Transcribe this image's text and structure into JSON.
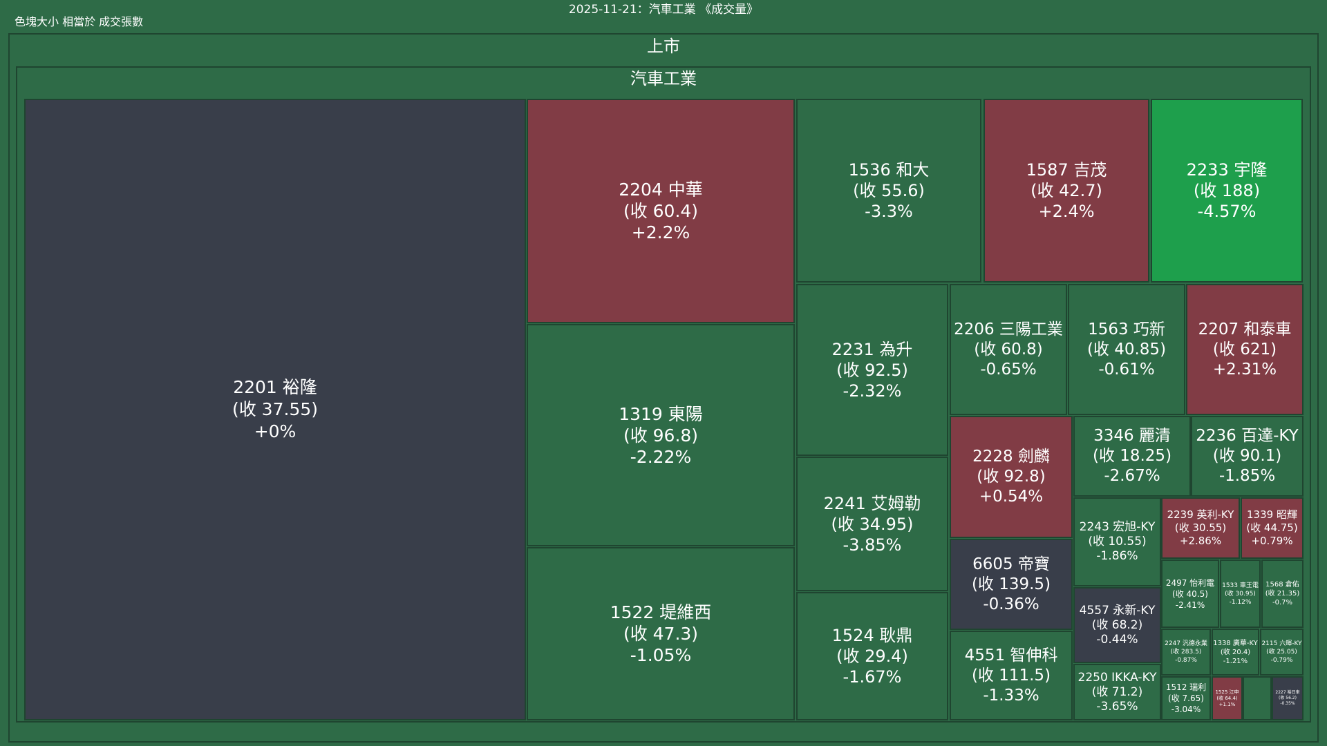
{
  "title": "2025-11-21：汽車工業 《成交量》",
  "size_note": "色塊大小 相當於 成交張數",
  "colors": {
    "up": "#813c45",
    "down": "#2e6b47",
    "flat": "#393e4a",
    "strong_down": "#1e9f4c",
    "border": "#1f4530"
  },
  "chart_data": {
    "type": "treemap",
    "title": "2025-11-21：汽車工業 《成交量》",
    "size_measure": "色塊大小 相當於 成交張數",
    "hierarchy": [
      "上市",
      "汽車工業"
    ],
    "market_label": "上市",
    "sector_label": "汽車工業",
    "tiles": [
      {
        "name": "2201 裕隆",
        "close": "(收 37.55)",
        "change": "+0%",
        "change_value": 0,
        "color": "#393e4a"
      },
      {
        "name": "2204 中華",
        "close": "(收 60.4)",
        "change": "+2.2%",
        "change_value": 2.2,
        "color": "#813c45"
      },
      {
        "name": "1319 東陽",
        "close": "(收 96.8)",
        "change": "-2.22%",
        "change_value": -2.22,
        "color": "#2e6b47"
      },
      {
        "name": "1522 堤維西",
        "close": "(收 47.3)",
        "change": "-1.05%",
        "change_value": -1.05,
        "color": "#2e6b47"
      },
      {
        "name": "1536 和大",
        "close": "(收 55.6)",
        "change": "-3.3%",
        "change_value": -3.3,
        "color": "#2e6b47"
      },
      {
        "name": "1587 吉茂",
        "close": "(收 42.7)",
        "change": "+2.4%",
        "change_value": 2.4,
        "color": "#813c45"
      },
      {
        "name": "2233 宇隆",
        "close": "(收 188)",
        "change": "-4.57%",
        "change_value": -4.57,
        "color": "#1e9f4c"
      },
      {
        "name": "2231 為升",
        "close": "(收 92.5)",
        "change": "-2.32%",
        "change_value": -2.32,
        "color": "#2e6b47"
      },
      {
        "name": "2241 艾姆勒",
        "close": "(收 34.95)",
        "change": "-3.85%",
        "change_value": -3.85,
        "color": "#2e6b47"
      },
      {
        "name": "1524 耿鼎",
        "close": "(收 29.4)",
        "change": "-1.67%",
        "change_value": -1.67,
        "color": "#2e6b47"
      },
      {
        "name": "2206 三陽工業",
        "close": "(收 60.8)",
        "change": "-0.65%",
        "change_value": -0.65,
        "color": "#2e6b47"
      },
      {
        "name": "1563 巧新",
        "close": "(收 40.85)",
        "change": "-0.61%",
        "change_value": -0.61,
        "color": "#2e6b47"
      },
      {
        "name": "2207 和泰車",
        "close": "(收 621)",
        "change": "+2.31%",
        "change_value": 2.31,
        "color": "#813c45"
      },
      {
        "name": "2228 劍麟",
        "close": "(收 92.8)",
        "change": "+0.54%",
        "change_value": 0.54,
        "color": "#813c45"
      },
      {
        "name": "3346 麗清",
        "close": "(收 18.25)",
        "change": "-2.67%",
        "change_value": -2.67,
        "color": "#2e6b47"
      },
      {
        "name": "2236 百達-KY",
        "close": "(收 90.1)",
        "change": "-1.85%",
        "change_value": -1.85,
        "color": "#2e6b47"
      },
      {
        "name": "6605 帝寶",
        "close": "(收 139.5)",
        "change": "-0.36%",
        "change_value": -0.36,
        "color": "#393e4a"
      },
      {
        "name": "4551 智伸科",
        "close": "(收 111.5)",
        "change": "-1.33%",
        "change_value": -1.33,
        "color": "#2e6b47"
      },
      {
        "name": "2243 宏旭-KY",
        "close": "(收 10.55)",
        "change": "-1.86%",
        "change_value": -1.86,
        "color": "#2e6b47"
      },
      {
        "name": "4557 永新-KY",
        "close": "(收 68.2)",
        "change": "-0.44%",
        "change_value": -0.44,
        "color": "#393e4a"
      },
      {
        "name": "2250 IKKA-KY",
        "close": "(收 71.2)",
        "change": "-3.65%",
        "change_value": -3.65,
        "color": "#2e6b47"
      },
      {
        "name": "2239 英利-KY",
        "close": "(收 30.55)",
        "change": "+2.86%",
        "change_value": 2.86,
        "color": "#813c45"
      },
      {
        "name": "1339 昭輝",
        "close": "(收 44.75)",
        "change": "+0.79%",
        "change_value": 0.79,
        "color": "#813c45"
      },
      {
        "name": "2497 怡利電",
        "close": "(收 40.5)",
        "change": "-2.41%",
        "change_value": -2.41,
        "color": "#2e6b47"
      },
      {
        "name": "1533 車王電",
        "close": "(收 30.95)",
        "change": "-1.12%",
        "change_value": -1.12,
        "color": "#2e6b47"
      },
      {
        "name": "1568 倉佑",
        "close": "(收 21.35)",
        "change": "-0.7%",
        "change_value": -0.7,
        "color": "#2e6b47"
      },
      {
        "name": "2247 汎德永業",
        "close": "(收 283.5)",
        "change": "-0.87%",
        "change_value": -0.87,
        "color": "#2e6b47"
      },
      {
        "name": "1338 廣華-KY",
        "close": "(收 20.4)",
        "change": "-1.21%",
        "change_value": -1.21,
        "color": "#2e6b47"
      },
      {
        "name": "2115 六暉-KY",
        "close": "(收 25.05)",
        "change": "-0.79%",
        "change_value": -0.79,
        "color": "#2e6b47"
      },
      {
        "name": "1512 瑞利",
        "close": "(收 7.65)",
        "change": "-3.04%",
        "change_value": -3.04,
        "color": "#2e6b47"
      },
      {
        "name": "1525 江申",
        "close": "(收 64.4)",
        "change": "+1.1%",
        "change_value": 1.1,
        "color": "#813c45"
      },
      {
        "name": "",
        "close": "",
        "change": "",
        "change_value": null,
        "color": "#2e6b47"
      },
      {
        "name": "2227 裕日車",
        "close": "(收 56.2)",
        "change": "-0.35%",
        "change_value": -0.35,
        "color": "#393e4a"
      }
    ]
  }
}
